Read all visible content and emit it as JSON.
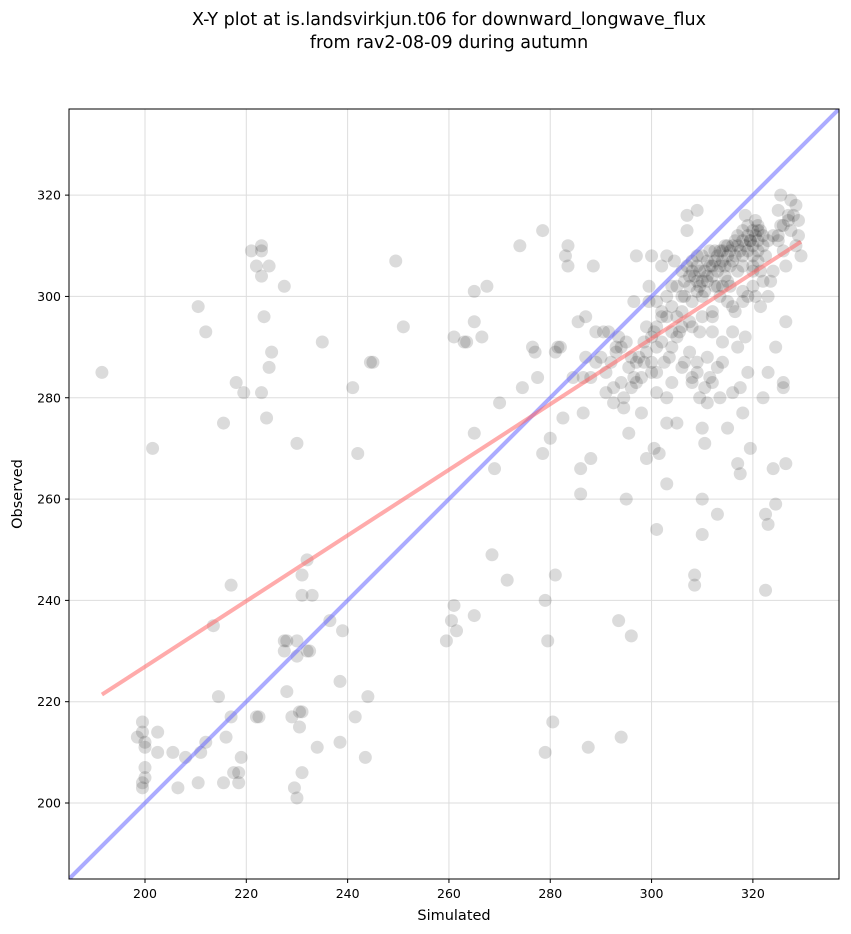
{
  "chart_data": {
    "type": "scatter",
    "title": "X-Y plot at is.landsvirkjun.t06 for downward_longwave_flux",
    "subtitle": "from rav2-08-09 during autumn",
    "xlabel": "Simulated",
    "ylabel": "Observed",
    "xlim": [
      185,
      337
    ],
    "ylim": [
      185,
      337
    ],
    "xticks": [
      200,
      220,
      240,
      260,
      280,
      300,
      320
    ],
    "yticks": [
      200,
      220,
      240,
      260,
      280,
      300,
      320
    ],
    "grid": true,
    "colors": {
      "points": "#000000",
      "identity_line": "#6666ff",
      "fit_line": "#ff6666",
      "grid": "#dddddd"
    },
    "identity_line": [
      [
        185,
        185
      ],
      [
        337,
        337
      ]
    ],
    "fit_line": [
      [
        191.5,
        221.4
      ],
      [
        329.5,
        310.8
      ]
    ],
    "points": [
      [
        191.5,
        285
      ],
      [
        201.5,
        270
      ],
      [
        199.5,
        216
      ],
      [
        199.5,
        203
      ],
      [
        199.5,
        204
      ],
      [
        200,
        205
      ],
      [
        200,
        207
      ],
      [
        200,
        211
      ],
      [
        200,
        212
      ],
      [
        198.5,
        213
      ],
      [
        199.5,
        214
      ],
      [
        202.5,
        214
      ],
      [
        202.5,
        210
      ],
      [
        205.5,
        210
      ],
      [
        206.5,
        203
      ],
      [
        208,
        209
      ],
      [
        210.5,
        204
      ],
      [
        211,
        210
      ],
      [
        212,
        212
      ],
      [
        213.5,
        235
      ],
      [
        214.5,
        221
      ],
      [
        215.5,
        204
      ],
      [
        216,
        213
      ],
      [
        217,
        217
      ],
      [
        217,
        243
      ],
      [
        217.5,
        206
      ],
      [
        218,
        283
      ],
      [
        218.5,
        204
      ],
      [
        218.5,
        206
      ],
      [
        219,
        209
      ],
      [
        219.5,
        281
      ],
      [
        215.5,
        275
      ],
      [
        210.5,
        298
      ],
      [
        212,
        293
      ],
      [
        221,
        309
      ],
      [
        222,
        306
      ],
      [
        222,
        217
      ],
      [
        222.5,
        217
      ],
      [
        223,
        304
      ],
      [
        223,
        309
      ],
      [
        223,
        310
      ],
      [
        223,
        281
      ],
      [
        223.5,
        296
      ],
      [
        224,
        276
      ],
      [
        224.5,
        306
      ],
      [
        224.5,
        286
      ],
      [
        225,
        289
      ],
      [
        227.5,
        302
      ],
      [
        227.5,
        232
      ],
      [
        227.5,
        230
      ],
      [
        228,
        222
      ],
      [
        228,
        232
      ],
      [
        229,
        217
      ],
      [
        229.5,
        203
      ],
      [
        230,
        201
      ],
      [
        230,
        229
      ],
      [
        230,
        232
      ],
      [
        230,
        271
      ],
      [
        230.5,
        215
      ],
      [
        230.5,
        218
      ],
      [
        231,
        218
      ],
      [
        231,
        206
      ],
      [
        231,
        245
      ],
      [
        231,
        241
      ],
      [
        232,
        248
      ],
      [
        232,
        230
      ],
      [
        232.5,
        230
      ],
      [
        233,
        241
      ],
      [
        234,
        211
      ],
      [
        235,
        291
      ],
      [
        236.5,
        236
      ],
      [
        238.5,
        224
      ],
      [
        238.5,
        212
      ],
      [
        239,
        234
      ],
      [
        241,
        282
      ],
      [
        241.5,
        217
      ],
      [
        242,
        269
      ],
      [
        243.5,
        209
      ],
      [
        244,
        221
      ],
      [
        244.5,
        287
      ],
      [
        245,
        287
      ],
      [
        249.5,
        307
      ],
      [
        251,
        294
      ],
      [
        259.5,
        232
      ],
      [
        260.5,
        236
      ],
      [
        261,
        239
      ],
      [
        261,
        292
      ],
      [
        261.5,
        234
      ],
      [
        263,
        291
      ],
      [
        263.5,
        291
      ],
      [
        265,
        273
      ],
      [
        265,
        237
      ],
      [
        265,
        295
      ],
      [
        265,
        301
      ],
      [
        266.5,
        292
      ],
      [
        267.5,
        302
      ],
      [
        268.5,
        249
      ],
      [
        269,
        266
      ],
      [
        270,
        279
      ],
      [
        271.5,
        244
      ],
      [
        274,
        310
      ],
      [
        274.5,
        282
      ],
      [
        276.5,
        290
      ],
      [
        277,
        289
      ],
      [
        277.5,
        284
      ],
      [
        278.5,
        269
      ],
      [
        278.5,
        313
      ],
      [
        279,
        240
      ],
      [
        279,
        210
      ],
      [
        279.5,
        232
      ],
      [
        280,
        272
      ],
      [
        280.5,
        216
      ],
      [
        281,
        289
      ],
      [
        281,
        245
      ],
      [
        281.5,
        290
      ],
      [
        282,
        290
      ],
      [
        282.5,
        276
      ],
      [
        283,
        308
      ],
      [
        283.5,
        306
      ],
      [
        283.5,
        310
      ],
      [
        284.5,
        284
      ],
      [
        285.5,
        295
      ],
      [
        286,
        261
      ],
      [
        286,
        266
      ],
      [
        286.5,
        277
      ],
      [
        286.5,
        284
      ],
      [
        287,
        288
      ],
      [
        287,
        296
      ],
      [
        287.5,
        211
      ],
      [
        288,
        268
      ],
      [
        288.5,
        306
      ],
      [
        289,
        293
      ],
      [
        289,
        287
      ],
      [
        290.5,
        293
      ],
      [
        291,
        281
      ],
      [
        291.5,
        293
      ],
      [
        292.5,
        282
      ],
      [
        292.5,
        279
      ],
      [
        293,
        290
      ],
      [
        293.5,
        292
      ],
      [
        293.5,
        236
      ],
      [
        294,
        213
      ],
      [
        294,
        283
      ],
      [
        294.5,
        280
      ],
      [
        294.5,
        278
      ],
      [
        295,
        260
      ],
      [
        295.5,
        273
      ],
      [
        295.5,
        286
      ],
      [
        296,
        233
      ],
      [
        296.5,
        299
      ],
      [
        296.5,
        284
      ],
      [
        297,
        283
      ],
      [
        297,
        308
      ],
      [
        297.5,
        288
      ],
      [
        298,
        277
      ],
      [
        298.5,
        287
      ],
      [
        298.5,
        291
      ],
      [
        299,
        294
      ],
      [
        299,
        268
      ],
      [
        299.5,
        299
      ],
      [
        299.5,
        302
      ],
      [
        300,
        285
      ],
      [
        300,
        308
      ],
      [
        300.5,
        270
      ],
      [
        300.5,
        293
      ],
      [
        301,
        254
      ],
      [
        301,
        281
      ],
      [
        301,
        290
      ],
      [
        301.5,
        269
      ],
      [
        302,
        306
      ],
      [
        302,
        296
      ],
      [
        302.5,
        287
      ],
      [
        303,
        308
      ],
      [
        303,
        275
      ],
      [
        303,
        263
      ],
      [
        303,
        280
      ],
      [
        303.5,
        288
      ],
      [
        304,
        302
      ],
      [
        304,
        290
      ],
      [
        304.5,
        307
      ],
      [
        305,
        275
      ],
      [
        305,
        296
      ],
      [
        305.5,
        293
      ],
      [
        306,
        297
      ],
      [
        306,
        300
      ],
      [
        306.5,
        287
      ],
      [
        307,
        313
      ],
      [
        307,
        316
      ],
      [
        307.5,
        304
      ],
      [
        307.5,
        295
      ],
      [
        307.5,
        289
      ],
      [
        308,
        299
      ],
      [
        308,
        305
      ],
      [
        308,
        284
      ],
      [
        308,
        283
      ],
      [
        308.5,
        245
      ],
      [
        308.5,
        243
      ],
      [
        309,
        308
      ],
      [
        309,
        317
      ],
      [
        309,
        301
      ],
      [
        309,
        285
      ],
      [
        309.5,
        280
      ],
      [
        309.5,
        293
      ],
      [
        310,
        274
      ],
      [
        310,
        260
      ],
      [
        310,
        253
      ],
      [
        310.5,
        271
      ],
      [
        310.5,
        282
      ],
      [
        310.5,
        301
      ],
      [
        311,
        288
      ],
      [
        311,
        279
      ],
      [
        311,
        303
      ],
      [
        311.5,
        306
      ],
      [
        311.5,
        284
      ],
      [
        312,
        296
      ],
      [
        312,
        283
      ],
      [
        312,
        293
      ],
      [
        312.5,
        309
      ],
      [
        312.5,
        302
      ],
      [
        313,
        286
      ],
      [
        313,
        257
      ],
      [
        313.5,
        309
      ],
      [
        313.5,
        300
      ],
      [
        313.5,
        280
      ],
      [
        314,
        291
      ],
      [
        314,
        287
      ],
      [
        314.5,
        310
      ],
      [
        314.5,
        304
      ],
      [
        315,
        299
      ],
      [
        315,
        274
      ],
      [
        315.5,
        306
      ],
      [
        315.5,
        302
      ],
      [
        316,
        293
      ],
      [
        316,
        281
      ],
      [
        316.5,
        311
      ],
      [
        316.5,
        297
      ],
      [
        317,
        290
      ],
      [
        317,
        267
      ],
      [
        317.5,
        265
      ],
      [
        317.5,
        282
      ],
      [
        318,
        277
      ],
      [
        318,
        308
      ],
      [
        318,
        301
      ],
      [
        318.5,
        316
      ],
      [
        318.5,
        292
      ],
      [
        319,
        285
      ],
      [
        319,
        300
      ],
      [
        319.5,
        270
      ],
      [
        319.5,
        311
      ],
      [
        320,
        305
      ],
      [
        320,
        306
      ],
      [
        320.5,
        315
      ],
      [
        320.5,
        300
      ],
      [
        321,
        309
      ],
      [
        321,
        313
      ],
      [
        321.5,
        305
      ],
      [
        321.5,
        298
      ],
      [
        322,
        280
      ],
      [
        322.5,
        257
      ],
      [
        322.5,
        242
      ],
      [
        323,
        285
      ],
      [
        323,
        255
      ],
      [
        323,
        300
      ],
      [
        323.5,
        303
      ],
      [
        324,
        266
      ],
      [
        324.5,
        259
      ],
      [
        324.5,
        290
      ],
      [
        325,
        312
      ],
      [
        325,
        317
      ],
      [
        325.5,
        320
      ],
      [
        325.5,
        314
      ],
      [
        326,
        309
      ],
      [
        326,
        282
      ],
      [
        326,
        283
      ],
      [
        326.5,
        267
      ],
      [
        326.5,
        295
      ],
      [
        326.5,
        306
      ],
      [
        327,
        315
      ],
      [
        327.5,
        313
      ],
      [
        327.5,
        319
      ],
      [
        328,
        316
      ],
      [
        328.5,
        318
      ],
      [
        328.5,
        310
      ],
      [
        329,
        312
      ],
      [
        329,
        315
      ],
      [
        329.5,
        308
      ],
      [
        306.5,
        300
      ],
      [
        306.5,
        303
      ],
      [
        307,
        306
      ],
      [
        307.5,
        302
      ],
      [
        308,
        307
      ],
      [
        308.5,
        304
      ],
      [
        309,
        306
      ],
      [
        309.5,
        305
      ],
      [
        309.5,
        302
      ],
      [
        310,
        303
      ],
      [
        310,
        308
      ],
      [
        310.5,
        305
      ],
      [
        311,
        307
      ],
      [
        311,
        304
      ],
      [
        311.5,
        309
      ],
      [
        312,
        306
      ],
      [
        312,
        304
      ],
      [
        312.5,
        307
      ],
      [
        313,
        305
      ],
      [
        313,
        308
      ],
      [
        313.5,
        306
      ],
      [
        314,
        307
      ],
      [
        314,
        309
      ],
      [
        314.5,
        306
      ],
      [
        315,
        308
      ],
      [
        315,
        310
      ],
      [
        315.5,
        309
      ],
      [
        316,
        307
      ],
      [
        316,
        310
      ],
      [
        316.5,
        308
      ],
      [
        317,
        310
      ],
      [
        317,
        312
      ],
      [
        317.5,
        309
      ],
      [
        318,
        311
      ],
      [
        318,
        313
      ],
      [
        318.5,
        310
      ],
      [
        319,
        312
      ],
      [
        319,
        314
      ],
      [
        319.5,
        311
      ],
      [
        320,
        313
      ],
      [
        320,
        310
      ],
      [
        320.5,
        312
      ],
      [
        321,
        314
      ],
      [
        321,
        311
      ],
      [
        321.5,
        313
      ],
      [
        322,
        312
      ],
      [
        322,
        310
      ],
      [
        322.5,
        308
      ],
      [
        319,
        309
      ],
      [
        317,
        305
      ],
      [
        318,
        306
      ],
      [
        315,
        303
      ],
      [
        313,
        302
      ],
      [
        310,
        300
      ],
      [
        305,
        302
      ],
      [
        304,
        298
      ],
      [
        303,
        300
      ],
      [
        302,
        297
      ],
      [
        301,
        294
      ],
      [
        300,
        292
      ],
      [
        301,
        299
      ],
      [
        299,
        289
      ],
      [
        305,
        292
      ],
      [
        306,
        294
      ],
      [
        304,
        293
      ],
      [
        320,
        302
      ],
      [
        322,
        303
      ],
      [
        324,
        305
      ],
      [
        316,
        298
      ],
      [
        318,
        299
      ],
      [
        312,
        297
      ],
      [
        310,
        296
      ],
      [
        308,
        294
      ],
      [
        294,
        290
      ],
      [
        295,
        291
      ],
      [
        293,
        289
      ],
      [
        292,
        287
      ],
      [
        291,
        285
      ],
      [
        296,
        288
      ],
      [
        297,
        287
      ],
      [
        301,
        285
      ],
      [
        304,
        283
      ],
      [
        306,
        286
      ],
      [
        309,
        287
      ],
      [
        323,
        311
      ],
      [
        324,
        312
      ],
      [
        326,
        314
      ],
      [
        327,
        316
      ],
      [
        325,
        311
      ],
      [
        321,
        307
      ],
      [
        320,
        308
      ],
      [
        314,
        302
      ],
      [
        309,
        303
      ],
      [
        306,
        305
      ],
      [
        303,
        296
      ],
      [
        302,
        291
      ],
      [
        300,
        287
      ],
      [
        298,
        284
      ],
      [
        296,
        282
      ],
      [
        290,
        288
      ],
      [
        288,
        284
      ]
    ]
  }
}
